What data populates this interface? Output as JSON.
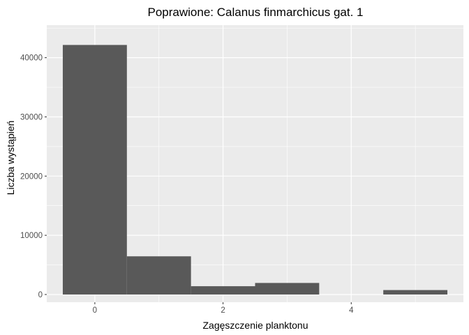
{
  "chart_data": {
    "type": "bar",
    "title": "Poprawione: Calanus finmarchicus gat. 1",
    "xlabel": "Zagęszczenie planktonu",
    "ylabel": "Liczba wystąpień",
    "x_ticks": [
      0,
      2,
      4
    ],
    "y_ticks": [
      0,
      10000,
      20000,
      30000,
      40000
    ],
    "xlim": [
      -0.75,
      5.75
    ],
    "ylim": [
      -1300,
      45500
    ],
    "bin_width": 1,
    "bins": [
      {
        "x": 0,
        "value": 42150
      },
      {
        "x": 1,
        "value": 6450
      },
      {
        "x": 2,
        "value": 1400
      },
      {
        "x": 3,
        "value": 1950
      },
      {
        "x": 4,
        "value": 0
      },
      {
        "x": 5,
        "value": 750
      }
    ],
    "colors": {
      "panel": "#ebebeb",
      "grid": "#ffffff",
      "bar": "#595959",
      "tick": "#4d4d4d"
    },
    "grid": true,
    "legend": "none"
  }
}
